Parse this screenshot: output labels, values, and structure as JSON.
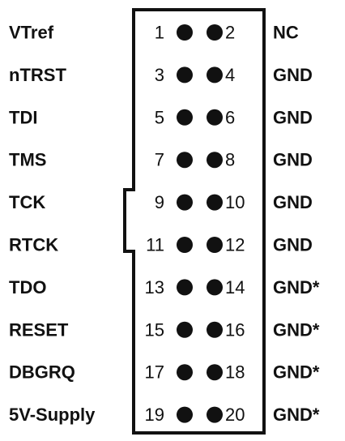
{
  "rows": [
    {
      "left_label": "VTref",
      "left_pin": "1",
      "right_pin": "2",
      "right_label": "NC"
    },
    {
      "left_label": "nTRST",
      "left_pin": "3",
      "right_pin": "4",
      "right_label": "GND"
    },
    {
      "left_label": "TDI",
      "left_pin": "5",
      "right_pin": "6",
      "right_label": "GND"
    },
    {
      "left_label": "TMS",
      "left_pin": "7",
      "right_pin": "8",
      "right_label": "GND"
    },
    {
      "left_label": "TCK",
      "left_pin": "9",
      "right_pin": "10",
      "right_label": "GND"
    },
    {
      "left_label": "RTCK",
      "left_pin": "11",
      "right_pin": "12",
      "right_label": "GND"
    },
    {
      "left_label": "TDO",
      "left_pin": "13",
      "right_pin": "14",
      "right_label": "GND*"
    },
    {
      "left_label": "RESET",
      "left_pin": "15",
      "right_pin": "16",
      "right_label": "GND*"
    },
    {
      "left_label": "DBGRQ",
      "left_pin": "17",
      "right_pin": "18",
      "right_label": "GND*"
    },
    {
      "left_label": "5V-Supply",
      "left_pin": "19",
      "right_pin": "20",
      "right_label": "GND*"
    }
  ],
  "colors": {
    "ink": "#111111",
    "background": "#ffffff"
  }
}
